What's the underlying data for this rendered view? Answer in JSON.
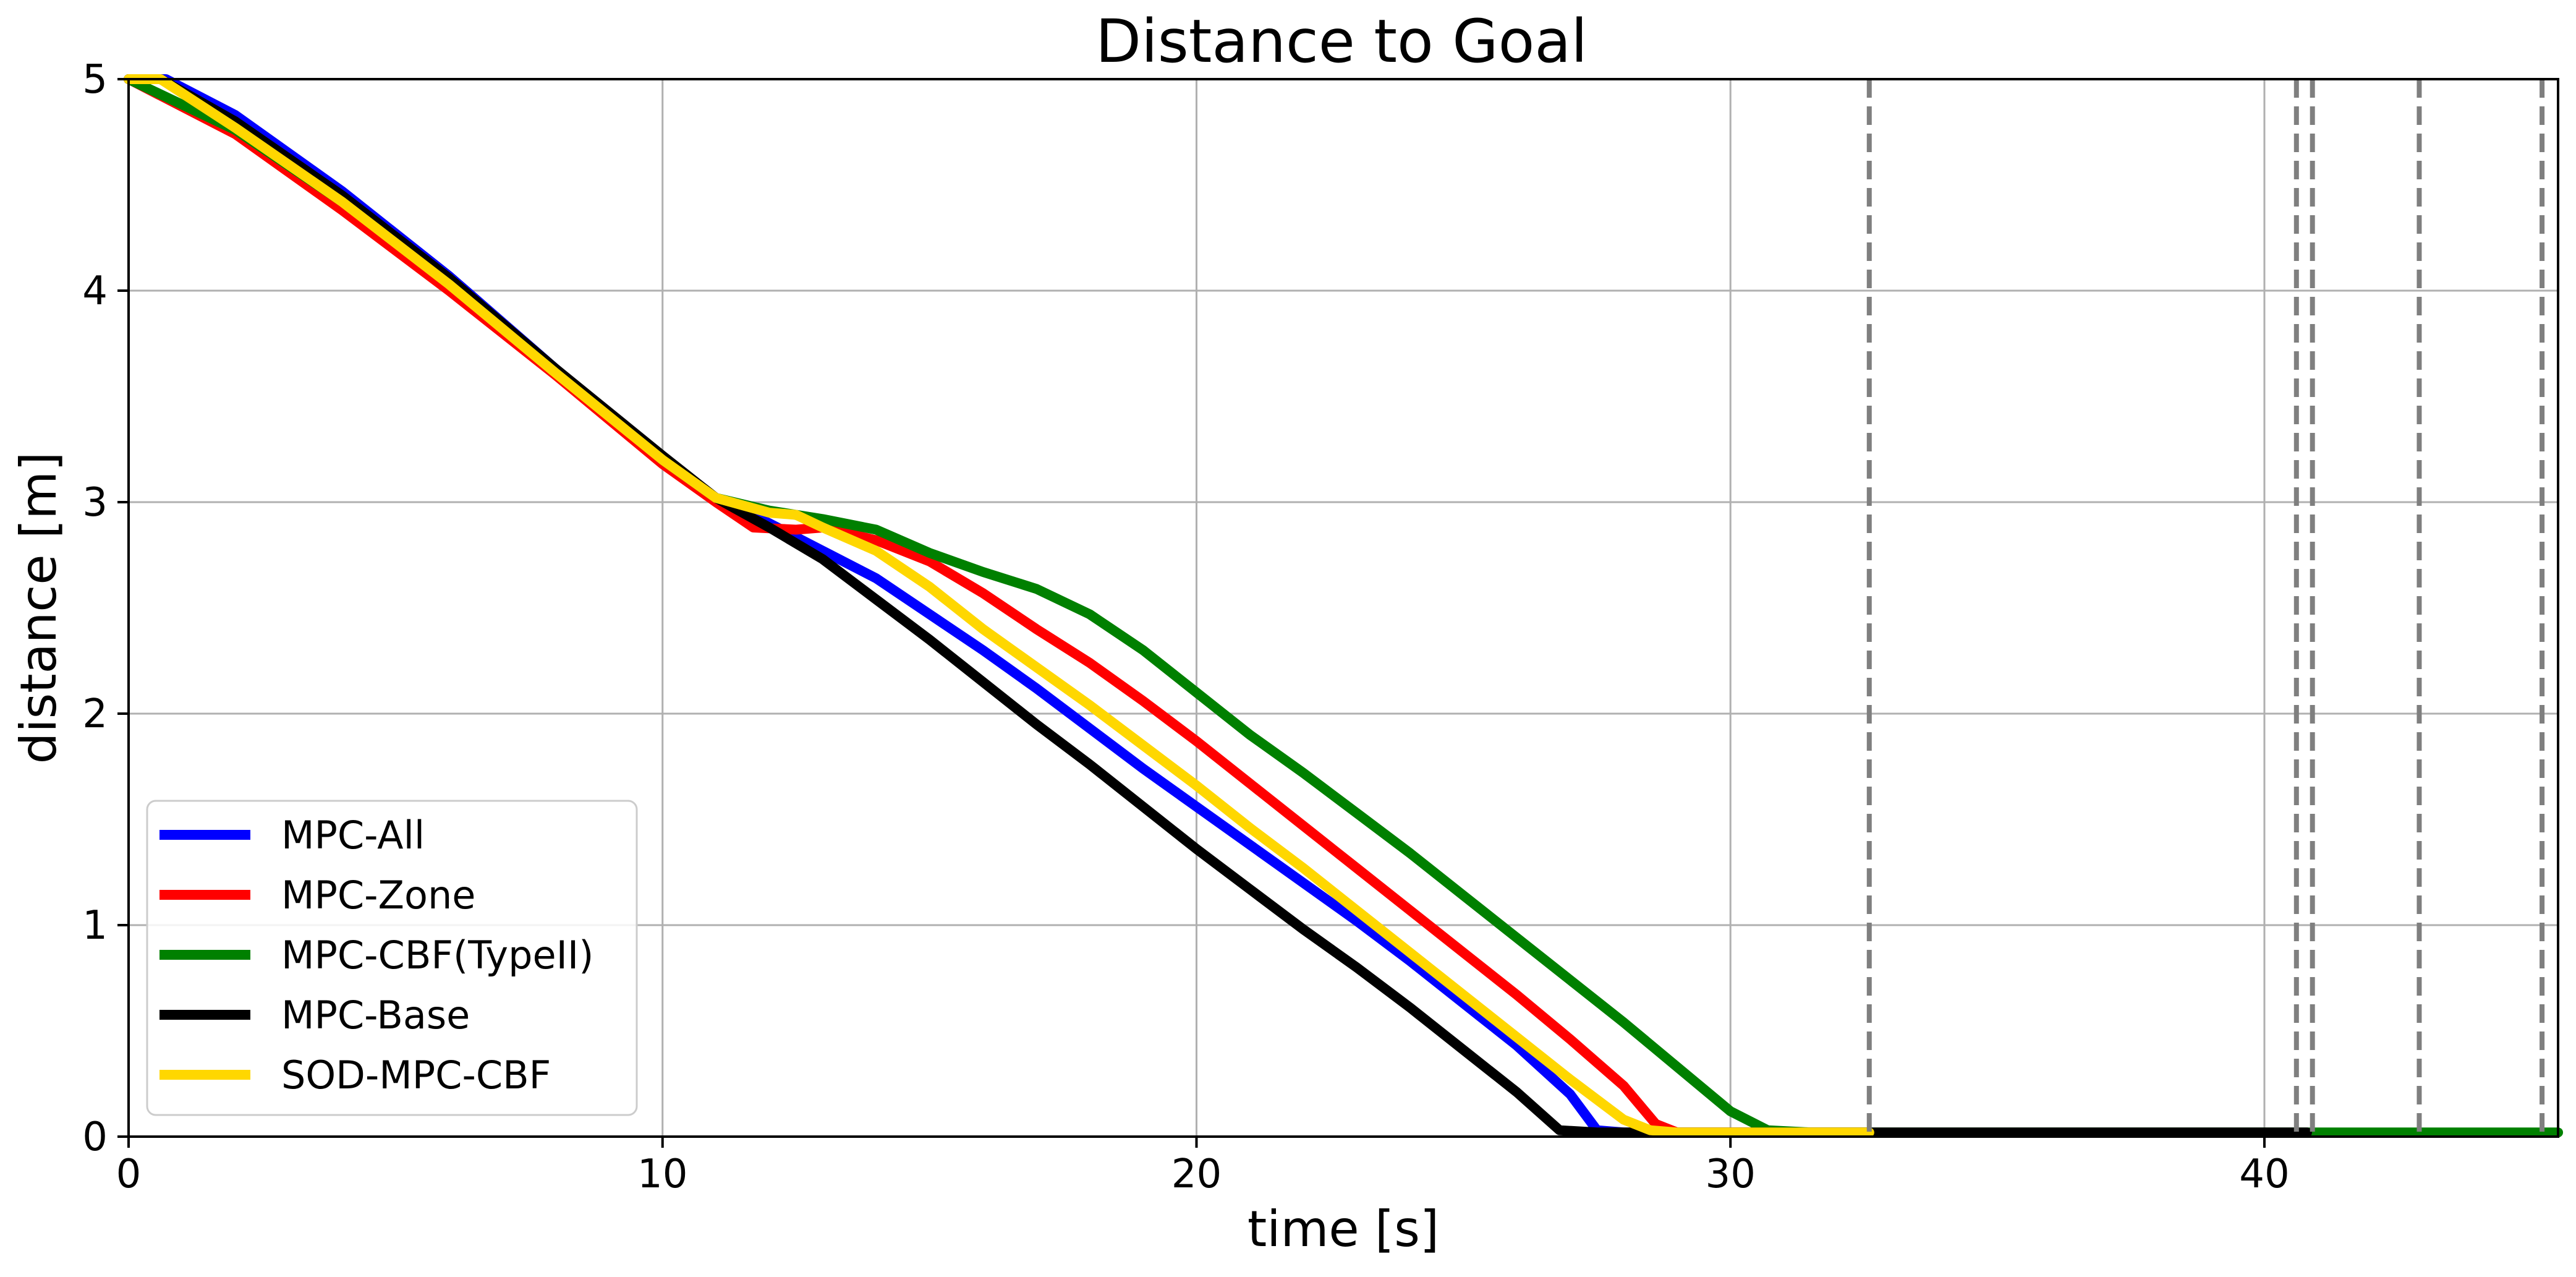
{
  "chart_data": {
    "type": "line",
    "title": "Distance to Goal",
    "xlabel": "time [s]",
    "ylabel": "distance [m]",
    "xlim": [
      0,
      45.5
    ],
    "ylim": [
      0,
      5
    ],
    "xticks": [
      0,
      10,
      20,
      30,
      40
    ],
    "yticks": [
      0,
      1,
      2,
      3,
      4,
      5
    ],
    "grid": true,
    "legend_position": "lower-left",
    "series": [
      {
        "name": "MPC-All",
        "color": "#0000ff",
        "points": [
          [
            0.0,
            5.0
          ],
          [
            0.7,
            5.0
          ],
          [
            2,
            4.83
          ],
          [
            4,
            4.47
          ],
          [
            6,
            4.07
          ],
          [
            8,
            3.63
          ],
          [
            10,
            3.2
          ],
          [
            11,
            3.02
          ],
          [
            12,
            2.9
          ],
          [
            13,
            2.77
          ],
          [
            14,
            2.64
          ],
          [
            15,
            2.47
          ],
          [
            16,
            2.3
          ],
          [
            17,
            2.12
          ],
          [
            18,
            1.93
          ],
          [
            19,
            1.74
          ],
          [
            20,
            1.56
          ],
          [
            21,
            1.38
          ],
          [
            22,
            1.2
          ],
          [
            23,
            1.02
          ],
          [
            24,
            0.83
          ],
          [
            25,
            0.63
          ],
          [
            26,
            0.43
          ],
          [
            27,
            0.2
          ],
          [
            27.5,
            0.03
          ],
          [
            28,
            0.02
          ],
          [
            29,
            0.02
          ],
          [
            32.6,
            0.02
          ]
        ]
      },
      {
        "name": "MPC-Zone",
        "color": "#ff0000",
        "points": [
          [
            0.0,
            5.0
          ],
          [
            2,
            4.74
          ],
          [
            4,
            4.38
          ],
          [
            6,
            4.0
          ],
          [
            8,
            3.6
          ],
          [
            10,
            3.18
          ],
          [
            11,
            3.0
          ],
          [
            11.7,
            2.88
          ],
          [
            12.5,
            2.87
          ],
          [
            13,
            2.88
          ],
          [
            14,
            2.82
          ],
          [
            15,
            2.72
          ],
          [
            16,
            2.57
          ],
          [
            17,
            2.4
          ],
          [
            18,
            2.24
          ],
          [
            19,
            2.06
          ],
          [
            20,
            1.87
          ],
          [
            21,
            1.67
          ],
          [
            22,
            1.47
          ],
          [
            23,
            1.27
          ],
          [
            24,
            1.07
          ],
          [
            25,
            0.87
          ],
          [
            26,
            0.67
          ],
          [
            27,
            0.46
          ],
          [
            28,
            0.24
          ],
          [
            28.6,
            0.06
          ],
          [
            29,
            0.02
          ],
          [
            32.6,
            0.02
          ]
        ]
      },
      {
        "name": "MPC-CBF(TypeII)",
        "color": "#008000",
        "points": [
          [
            0.0,
            5.0
          ],
          [
            2,
            4.76
          ],
          [
            4,
            4.42
          ],
          [
            6,
            4.04
          ],
          [
            8,
            3.62
          ],
          [
            10,
            3.2
          ],
          [
            11,
            3.02
          ],
          [
            12,
            2.96
          ],
          [
            13,
            2.92
          ],
          [
            14,
            2.87
          ],
          [
            15,
            2.76
          ],
          [
            16,
            2.67
          ],
          [
            17,
            2.59
          ],
          [
            18,
            2.47
          ],
          [
            19,
            2.3
          ],
          [
            20,
            2.1
          ],
          [
            21,
            1.9
          ],
          [
            22,
            1.72
          ],
          [
            23,
            1.53
          ],
          [
            24,
            1.34
          ],
          [
            25,
            1.14
          ],
          [
            26,
            0.94
          ],
          [
            27,
            0.74
          ],
          [
            28,
            0.54
          ],
          [
            29,
            0.33
          ],
          [
            30,
            0.12
          ],
          [
            30.7,
            0.03
          ],
          [
            31.5,
            0.02
          ],
          [
            45.5,
            0.02
          ]
        ]
      },
      {
        "name": "MPC-Base",
        "color": "#000000",
        "points": [
          [
            0.0,
            5.0
          ],
          [
            0.6,
            5.0
          ],
          [
            2,
            4.8
          ],
          [
            4,
            4.45
          ],
          [
            6,
            4.06
          ],
          [
            8,
            3.63
          ],
          [
            10,
            3.22
          ],
          [
            11,
            3.02
          ],
          [
            12,
            2.88
          ],
          [
            13,
            2.73
          ],
          [
            14,
            2.54
          ],
          [
            15,
            2.35
          ],
          [
            16,
            2.15
          ],
          [
            17,
            1.95
          ],
          [
            18,
            1.76
          ],
          [
            19,
            1.56
          ],
          [
            20,
            1.36
          ],
          [
            21,
            1.17
          ],
          [
            22,
            0.98
          ],
          [
            23,
            0.8
          ],
          [
            24,
            0.61
          ],
          [
            25,
            0.41
          ],
          [
            26,
            0.21
          ],
          [
            26.8,
            0.03
          ],
          [
            27.5,
            0.02
          ],
          [
            40.8,
            0.02
          ]
        ]
      },
      {
        "name": "SOD-MPC-CBF",
        "color": "#ffd700",
        "points": [
          [
            0.0,
            5.0
          ],
          [
            0.6,
            5.0
          ],
          [
            2,
            4.77
          ],
          [
            4,
            4.42
          ],
          [
            6,
            4.03
          ],
          [
            8,
            3.61
          ],
          [
            10,
            3.2
          ],
          [
            11,
            3.02
          ],
          [
            12,
            2.95
          ],
          [
            12.5,
            2.94
          ],
          [
            13,
            2.88
          ],
          [
            14,
            2.77
          ],
          [
            15,
            2.6
          ],
          [
            16,
            2.4
          ],
          [
            17,
            2.22
          ],
          [
            18,
            2.04
          ],
          [
            19,
            1.85
          ],
          [
            20,
            1.66
          ],
          [
            21,
            1.46
          ],
          [
            22,
            1.27
          ],
          [
            23,
            1.07
          ],
          [
            24,
            0.87
          ],
          [
            25,
            0.67
          ],
          [
            26,
            0.47
          ],
          [
            27,
            0.27
          ],
          [
            28,
            0.08
          ],
          [
            28.5,
            0.03
          ],
          [
            29,
            0.02
          ],
          [
            32.6,
            0.02
          ]
        ]
      }
    ],
    "vlines": {
      "color": "#7f7f7f",
      "style": "dashed",
      "x": [
        32.6,
        40.6,
        40.9,
        42.9,
        45.2
      ]
    }
  }
}
